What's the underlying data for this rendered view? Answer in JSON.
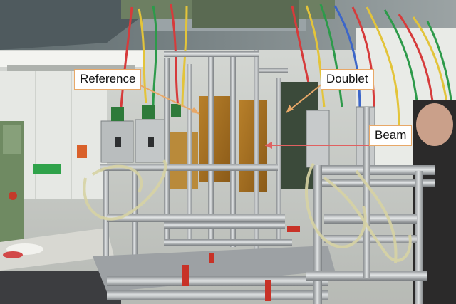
{
  "photo": {
    "subject": "particle detector test beam setup",
    "colors": {
      "callout_border": "#e8a868",
      "arrow": "#e8a868",
      "beam_arrow": "#e06060"
    }
  },
  "annotations": {
    "reference": "Reference",
    "doublet": "Doublet",
    "beam": "Beam"
  }
}
